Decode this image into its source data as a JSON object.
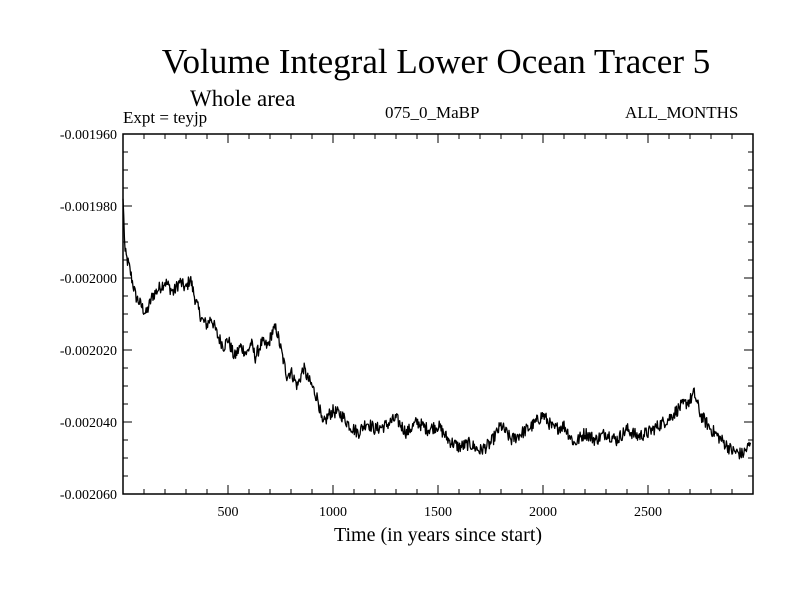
{
  "chart_data": {
    "type": "line",
    "title": "Volume Integral Lower Ocean Tracer 5",
    "subtitle": "Whole area",
    "experiment_label": "Expt = teyjp",
    "case_label": "075_0_MaBP",
    "period_label": "ALL_MONTHS",
    "xlabel": "Time (in years since start)",
    "ylabel": "",
    "xlim": [
      0,
      3000
    ],
    "ylim": [
      -0.00206,
      -0.00196
    ],
    "x_ticks": [
      500,
      1000,
      1500,
      2000,
      2500
    ],
    "y_ticks": [
      -0.00206,
      -0.00204,
      -0.00202,
      -0.002,
      -0.00198,
      -0.00196
    ],
    "y_tick_labels": [
      "-0.002060",
      "-0.002040",
      "-0.002020",
      "-0.002000",
      "-0.001980",
      "-0.001960"
    ],
    "series": [
      {
        "name": "Volume Integral Lower Ocean Tracer 5",
        "x": [
          0,
          10,
          30,
          60,
          90,
          110,
          140,
          170,
          200,
          240,
          270,
          300,
          320,
          340,
          360,
          380,
          400,
          420,
          450,
          480,
          500,
          530,
          560,
          590,
          610,
          630,
          660,
          690,
          710,
          730,
          760,
          780,
          800,
          830,
          860,
          880,
          900,
          930,
          950,
          980,
          1000,
          1040,
          1080,
          1120,
          1160,
          1200,
          1250,
          1300,
          1350,
          1400,
          1450,
          1500,
          1550,
          1600,
          1650,
          1700,
          1750,
          1800,
          1850,
          1900,
          1950,
          2000,
          2050,
          2100,
          2150,
          2200,
          2250,
          2300,
          2350,
          2400,
          2450,
          2500,
          2550,
          2600,
          2650,
          2700,
          2720,
          2750,
          2800,
          2850,
          2900,
          2950,
          2990
        ],
        "y": [
          -0.001978,
          -0.001993,
          -0.001997,
          -0.002005,
          -0.002008,
          -0.00201,
          -0.002005,
          -0.002003,
          -0.002001,
          -0.002004,
          -0.002001,
          -0.002003,
          -0.002,
          -0.002005,
          -0.002009,
          -0.002012,
          -0.002013,
          -0.002011,
          -0.002016,
          -0.002019,
          -0.002017,
          -0.002022,
          -0.002019,
          -0.002021,
          -0.002018,
          -0.002022,
          -0.002018,
          -0.002019,
          -0.002015,
          -0.002014,
          -0.002022,
          -0.002027,
          -0.002026,
          -0.00203,
          -0.002025,
          -0.002028,
          -0.00203,
          -0.002034,
          -0.002041,
          -0.002038,
          -0.002037,
          -0.002038,
          -0.002041,
          -0.002043,
          -0.00204,
          -0.002042,
          -0.002041,
          -0.002039,
          -0.002043,
          -0.00204,
          -0.002042,
          -0.002041,
          -0.002045,
          -0.002047,
          -0.002046,
          -0.002048,
          -0.002046,
          -0.002041,
          -0.002045,
          -0.002043,
          -0.002041,
          -0.002038,
          -0.002042,
          -0.002041,
          -0.002046,
          -0.002043,
          -0.002045,
          -0.002043,
          -0.002045,
          -0.002042,
          -0.002044,
          -0.002043,
          -0.002041,
          -0.002039,
          -0.002036,
          -0.002034,
          -0.002032,
          -0.002038,
          -0.002042,
          -0.002045,
          -0.002048,
          -0.002049,
          -0.002046
        ]
      }
    ]
  }
}
